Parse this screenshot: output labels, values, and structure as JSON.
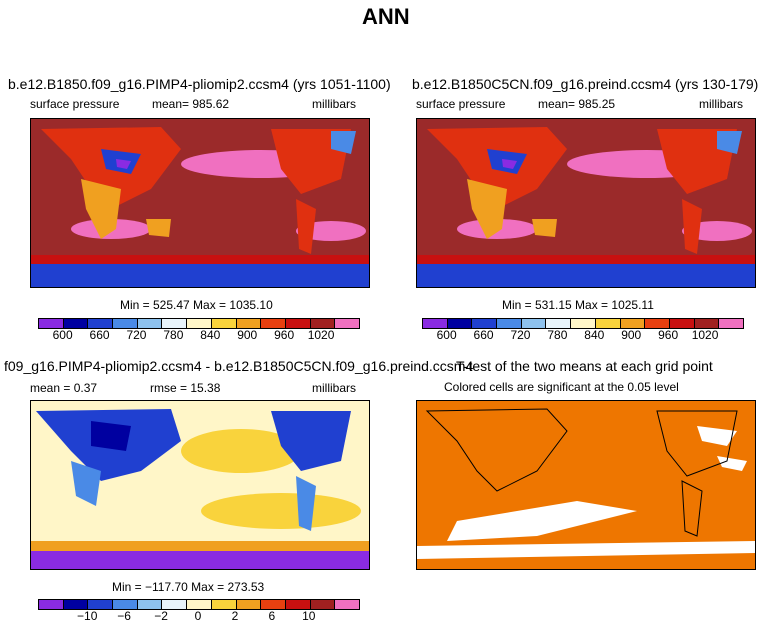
{
  "title": "ANN",
  "panels": {
    "p1": {
      "title": "b.e12.B1850.f09_g16.PIMP4-pliomip2.ccsm4 (yrs 1051-1100)",
      "left": "surface pressure",
      "center": "mean=  985.62",
      "right": "millibars",
      "minmax": "Min = 525.47 Max = 1035.10"
    },
    "p2": {
      "title": "b.e12.B1850C5CN.f09_g16.preind.ccsm4 (yrs 130-179)",
      "left": "surface pressure",
      "center": "mean=  985.25",
      "right": "millibars",
      "minmax": "Min = 531.15 Max = 1025.11"
    },
    "p3": {
      "title": "f09_g16.PIMP4-pliomip2.ccsm4 - b.e12.B1850C5CN.f09_g16.preind.ccsm4",
      "mean": "mean =    0.37",
      "rmse": "rmse =   15.38",
      "right": "millibars",
      "minmax": "Min = −117.70 Max = 273.53"
    },
    "p4": {
      "title": "T-test of the two means at each grid point",
      "subtitle": "Colored cells are significant at the 0.05 level"
    }
  },
  "colorbars": {
    "pressure": {
      "colors": [
        "#8a2be2",
        "#0000a0",
        "#2040d0",
        "#4a8ae6",
        "#8ec2ee",
        "#e8f4fb",
        "#fff6c8",
        "#f9d33c",
        "#f0a020",
        "#e84010",
        "#c81010",
        "#a02020",
        "#f070c0"
      ],
      "labels": [
        "600",
        "660",
        "720",
        "780",
        "840",
        "900",
        "960",
        "1020"
      ]
    },
    "diff": {
      "colors": [
        "#8a2be2",
        "#0000a0",
        "#2040d0",
        "#4a8ae6",
        "#8ec2ee",
        "#e8f4fb",
        "#fff6c8",
        "#f9d33c",
        "#f0a020",
        "#e84010",
        "#c81010",
        "#a02020",
        "#f070c0"
      ],
      "labels": [
        "−10",
        "−6",
        "−2",
        "0",
        "2",
        "6",
        "10"
      ]
    }
  },
  "colors": {
    "ocean_high": "#9b2a2a",
    "high_pink": "#f070c0",
    "land_red": "#e03010",
    "land_orange": "#f0a020",
    "low_blue": "#2040d0",
    "low_purple": "#8a2be2",
    "diff_yellow": "#fff6c8",
    "diff_orange": "#f9d33c",
    "ttest_fill": "#ee7600"
  }
}
